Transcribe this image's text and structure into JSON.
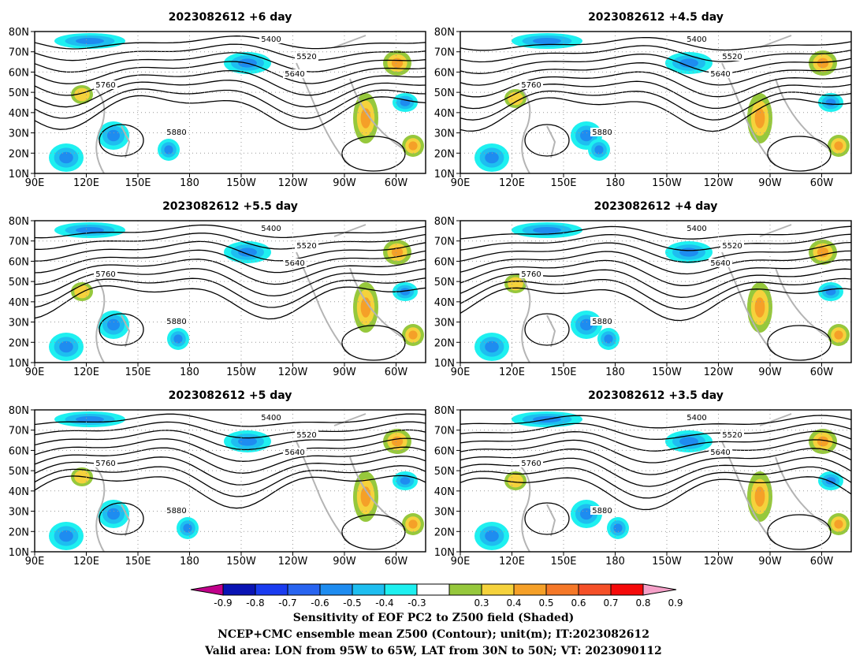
{
  "panels": [
    {
      "title": "2023082612 +6 day"
    },
    {
      "title": "2023082612 +4.5 day"
    },
    {
      "title": "2023082612 +5.5 day"
    },
    {
      "title": "2023082612 +4 day"
    },
    {
      "title": "2023082612 +5 day"
    },
    {
      "title": "2023082612 +3.5 day"
    }
  ],
  "lat_ticks": [
    "80N",
    "70N",
    "60N",
    "50N",
    "40N",
    "30N",
    "20N",
    "10N"
  ],
  "lon_ticks": [
    "90E",
    "120E",
    "150E",
    "180",
    "150W",
    "120W",
    "90W",
    "60W"
  ],
  "colorbar": {
    "labels": [
      "-0.9",
      "-0.8",
      "-0.7",
      "-0.6",
      "-0.5",
      "-0.4",
      "-0.3",
      "0.3",
      "0.4",
      "0.5",
      "0.6",
      "0.7",
      "0.8",
      "0.9"
    ],
    "colors": [
      "#c0008a",
      "#0a14b4",
      "#1a3cf0",
      "#2864f0",
      "#1e8cf0",
      "#1ebef0",
      "#1ef0f0",
      "#ffffff",
      "#96c83c",
      "#f5d23c",
      "#f5a028",
      "#f57828",
      "#f55028",
      "#f50a0a",
      "#f5a0c8"
    ]
  },
  "contour_labels": [
    "5400",
    "5520",
    "5640",
    "5760",
    "5880"
  ],
  "footer": {
    "line1": "Sensitivity of EOF PC2 to Z500 field (Shaded)",
    "line2": "NCEP+CMC ensemble mean Z500 (Contour); unit(m); IT:2023082612",
    "line3": "Valid area: LON from 95W to 65W, LAT from 30N to 50N; VT: 2023090112"
  }
}
